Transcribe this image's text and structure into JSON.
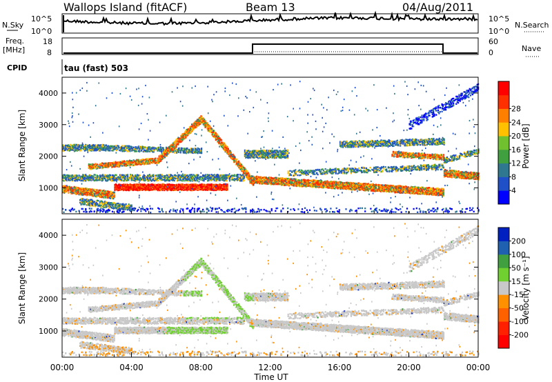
{
  "header": {
    "station": "Wallops Island (fitACF)",
    "beam": "Beam 13",
    "date": "04/Aug/2011"
  },
  "panels": {
    "nsky": {
      "label": "N.Sky",
      "right_label": "N.Search",
      "left_ticks": [
        "10^5",
        "10^0"
      ],
      "right_ticks": [
        "10^5",
        "10^0"
      ]
    },
    "freq": {
      "label_line1": "Freq.",
      "label_line2": "[MHz]",
      "right_label": "Nave",
      "left_ticks": [
        "18",
        "8"
      ],
      "right_ticks": [
        "60",
        "0"
      ]
    },
    "cpid": {
      "label": "CPID",
      "value": "tau (fast) 503"
    }
  },
  "chart_data": [
    {
      "type": "heatmap",
      "name": "power",
      "xlabel": "",
      "ylabel": "Slant Range [km]",
      "xlim": [
        0,
        24
      ],
      "ylim": [
        180,
        4500
      ],
      "y_ticks": [
        1000,
        2000,
        3000,
        4000
      ],
      "colorbar": {
        "label": "Power [dB]",
        "ticks": [
          "4",
          "8",
          "12",
          "16",
          "20",
          "24",
          "28"
        ],
        "colors": [
          "#0000ff",
          "#2050c8",
          "#307890",
          "#40a040",
          "#70c030",
          "#ffc000",
          "#ff8000",
          "#ff3000",
          "#ff0000"
        ]
      }
    },
    {
      "type": "heatmap",
      "name": "velocity",
      "xlabel": "Time UT",
      "ylabel": "Slant Range [km]",
      "xlim": [
        0,
        24
      ],
      "ylim": [
        180,
        4500
      ],
      "y_ticks": [
        1000,
        2000,
        3000,
        4000
      ],
      "x_ticks": [
        "00:00",
        "04:00",
        "08:00",
        "12:00",
        "16:00",
        "20:00",
        "00:00"
      ],
      "colorbar": {
        "label": "Velocity [m s⁻¹]",
        "ticks": [
          "200",
          "100",
          "50",
          "15",
          "-15",
          "-50",
          "-100",
          "-200"
        ],
        "colors": [
          "#0020c0",
          "#2060b0",
          "#40a040",
          "#70d030",
          "#c8c8c8",
          "#ff9000",
          "#ff6000",
          "#ff2000",
          "#ff0000"
        ]
      }
    }
  ]
}
